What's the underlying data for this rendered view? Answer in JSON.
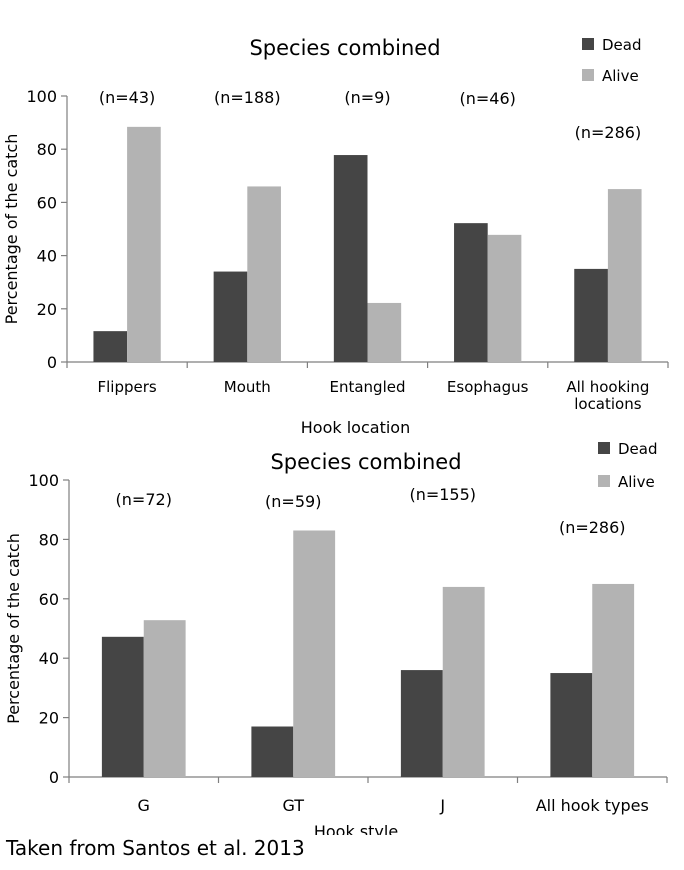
{
  "colors": {
    "dead": "#454545",
    "alive": "#b3b3b3",
    "axis": "#7f7f7f"
  },
  "legend_labels": {
    "dead": "Dead",
    "alive": "Alive"
  },
  "chart_data": [
    {
      "type": "bar",
      "title": "Species combined",
      "xlabel": "Hook location",
      "ylabel": "Percentage of the catch",
      "ylim": [
        0,
        100
      ],
      "yticks": [
        0,
        20,
        40,
        60,
        80,
        100
      ],
      "legend_position": "top-right",
      "categories": [
        [
          "Flippers"
        ],
        [
          "Mouth"
        ],
        [
          "Entangled"
        ],
        [
          "Esophagus"
        ],
        [
          "All hooking",
          "locations"
        ]
      ],
      "annotations": [
        "(n=43)",
        "(n=188)",
        "(n=9)",
        "(n=46)",
        "(n=286)"
      ],
      "series": [
        {
          "name": "Dead",
          "values": [
            11.6,
            34,
            77.8,
            52.2,
            35
          ]
        },
        {
          "name": "Alive",
          "values": [
            88.4,
            66,
            22.2,
            47.8,
            65
          ]
        }
      ]
    },
    {
      "type": "bar",
      "title": "Species combined",
      "xlabel": "Hook style",
      "ylabel": "Percentage of the catch",
      "ylim": [
        0,
        100
      ],
      "yticks": [
        0,
        20,
        40,
        60,
        80,
        100
      ],
      "legend_position": "top-right",
      "categories": [
        [
          "G"
        ],
        [
          "GT"
        ],
        [
          "J"
        ],
        [
          "All hook types"
        ]
      ],
      "annotations": [
        "(n=72)",
        "(n=59)",
        "(n=155)",
        "(n=286)"
      ],
      "series": [
        {
          "name": "Dead",
          "values": [
            47.2,
            17,
            36,
            35
          ]
        },
        {
          "name": "Alive",
          "values": [
            52.8,
            83,
            64,
            65
          ]
        }
      ]
    }
  ],
  "source_note": "Taken from Santos et al. 2013"
}
